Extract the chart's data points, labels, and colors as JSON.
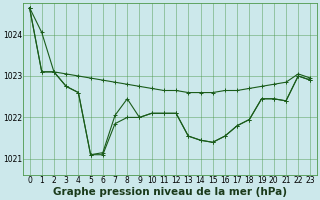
{
  "title": "Graphe pression niveau de la mer (hPa)",
  "background_color": "#cce8eb",
  "grid_color": "#4d994d",
  "line_color": "#1a5c1a",
  "marker_color": "#1a5c1a",
  "xlim": [
    -0.5,
    23.5
  ],
  "ylim": [
    1020.6,
    1024.75
  ],
  "yticks": [
    1021,
    1022,
    1023,
    1024
  ],
  "xticks": [
    0,
    1,
    2,
    3,
    4,
    5,
    6,
    7,
    8,
    9,
    10,
    11,
    12,
    13,
    14,
    15,
    16,
    17,
    18,
    19,
    20,
    21,
    22,
    23
  ],
  "series": [
    [
      1024.65,
      1024.05,
      1023.1,
      1023.05,
      1023.0,
      1022.95,
      1022.9,
      1022.85,
      1022.8,
      1022.75,
      1022.7,
      1022.65,
      1022.65,
      1022.6,
      1022.6,
      1022.6,
      1022.65,
      1022.65,
      1022.7,
      1022.75,
      1022.8,
      1022.85,
      1023.05,
      1022.95
    ],
    [
      1024.65,
      1023.1,
      1023.1,
      1022.75,
      1022.6,
      1021.1,
      1021.1,
      1021.85,
      1022.0,
      1022.0,
      1022.1,
      1022.1,
      1022.1,
      1021.55,
      1021.45,
      1021.4,
      1021.55,
      1021.8,
      1021.95,
      1022.45,
      1022.45,
      1022.4,
      1023.0,
      1022.9
    ],
    [
      1024.65,
      1023.1,
      1023.1,
      1022.75,
      1022.6,
      1021.1,
      1021.15,
      1022.05,
      1022.45,
      1022.0,
      1022.1,
      1022.1,
      1022.1,
      1021.55,
      1021.45,
      1021.4,
      1021.55,
      1021.8,
      1021.95,
      1022.45,
      1022.45,
      1022.4,
      1023.0,
      1022.9
    ]
  ],
  "tick_fontsize": 5.5,
  "xlabel_fontsize": 7.5,
  "xlabel_fontweight": "bold"
}
